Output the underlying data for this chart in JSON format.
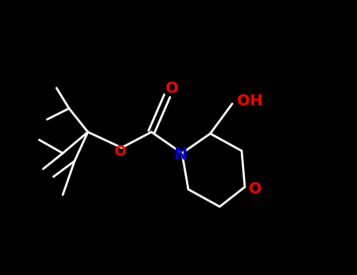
{
  "background_color": "#000000",
  "bond_color": "#ffffff",
  "O_color": "#ff0000",
  "N_color": "#0000cd",
  "label_O": "O",
  "label_N": "N",
  "label_OH": "OH",
  "figsize": [
    4.55,
    3.5
  ],
  "dpi": 100,
  "lw": 2.0
}
